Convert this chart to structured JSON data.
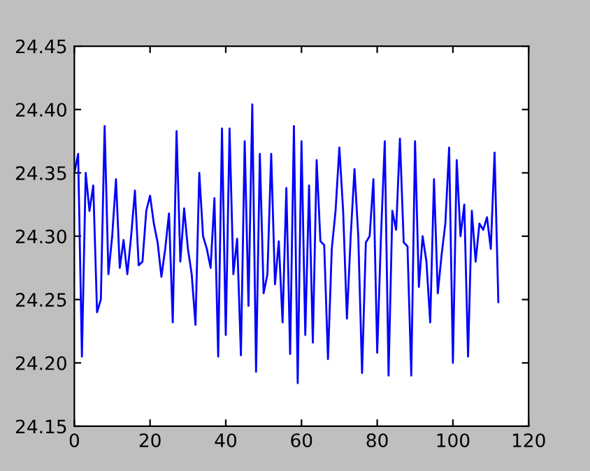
{
  "chart_data": {
    "type": "line",
    "color": "#0000ff",
    "values": [
      24.35,
      24.365,
      24.205,
      24.35,
      24.32,
      24.34,
      24.24,
      24.25,
      24.387,
      24.27,
      24.3,
      24.345,
      24.275,
      24.297,
      24.27,
      24.3,
      24.336,
      24.277,
      24.28,
      24.32,
      24.332,
      24.31,
      24.295,
      24.268,
      24.29,
      24.318,
      24.232,
      24.383,
      24.28,
      24.322,
      24.29,
      24.27,
      24.23,
      24.35,
      24.3,
      24.29,
      24.275,
      24.33,
      24.205,
      24.385,
      24.222,
      24.385,
      24.27,
      24.298,
      24.206,
      24.375,
      24.245,
      24.404,
      24.193,
      24.365,
      24.255,
      24.27,
      24.365,
      24.262,
      24.296,
      24.232,
      24.338,
      24.207,
      24.387,
      24.184,
      24.375,
      24.222,
      24.34,
      24.216,
      24.36,
      24.296,
      24.293,
      24.203,
      24.29,
      24.32,
      24.37,
      24.32,
      24.235,
      24.3,
      24.353,
      24.3,
      24.192,
      24.295,
      24.3,
      24.345,
      24.208,
      24.3,
      24.375,
      24.19,
      24.32,
      24.305,
      24.377,
      24.295,
      24.292,
      24.19,
      24.375,
      24.26,
      24.3,
      24.28,
      24.232,
      24.345,
      24.255,
      24.285,
      24.31,
      24.37,
      24.2,
      24.36,
      24.3,
      24.325,
      24.205,
      24.32,
      24.28,
      24.31,
      24.305,
      24.315,
      24.29,
      24.366,
      24.248
    ],
    "x": [
      0,
      1,
      2,
      3,
      4,
      5,
      6,
      7,
      8,
      9,
      10,
      11,
      12,
      13,
      14,
      15,
      16,
      17,
      18,
      19,
      20,
      21,
      22,
      23,
      24,
      25,
      26,
      27,
      28,
      29,
      30,
      31,
      32,
      33,
      34,
      35,
      36,
      37,
      38,
      39,
      40,
      41,
      42,
      43,
      44,
      45,
      46,
      47,
      48,
      49,
      50,
      51,
      52,
      53,
      54,
      55,
      56,
      57,
      58,
      59,
      60,
      61,
      62,
      63,
      64,
      65,
      66,
      67,
      68,
      69,
      70,
      71,
      72,
      73,
      74,
      75,
      76,
      77,
      78,
      79,
      80,
      81,
      82,
      83,
      84,
      85,
      86,
      87,
      88,
      89,
      90,
      91,
      92,
      93,
      94,
      95,
      96,
      97,
      98,
      99,
      100,
      101,
      102,
      103,
      104,
      105,
      106,
      107,
      108,
      109,
      110,
      111,
      112
    ],
    "xlim": [
      0,
      120
    ],
    "xticks": [
      0,
      20,
      40,
      60,
      80,
      100,
      120
    ],
    "ylim": [
      24.15,
      24.45
    ],
    "yticks": [
      24.15,
      {
        "value": 24.2,
        "label": "24.20"
      },
      24.25,
      {
        "value": 24.3,
        "label": "24.30"
      },
      24.35,
      {
        "value": 24.4,
        "label": "24.40"
      },
      24.45
    ],
    "grid": false,
    "legend": false
  }
}
